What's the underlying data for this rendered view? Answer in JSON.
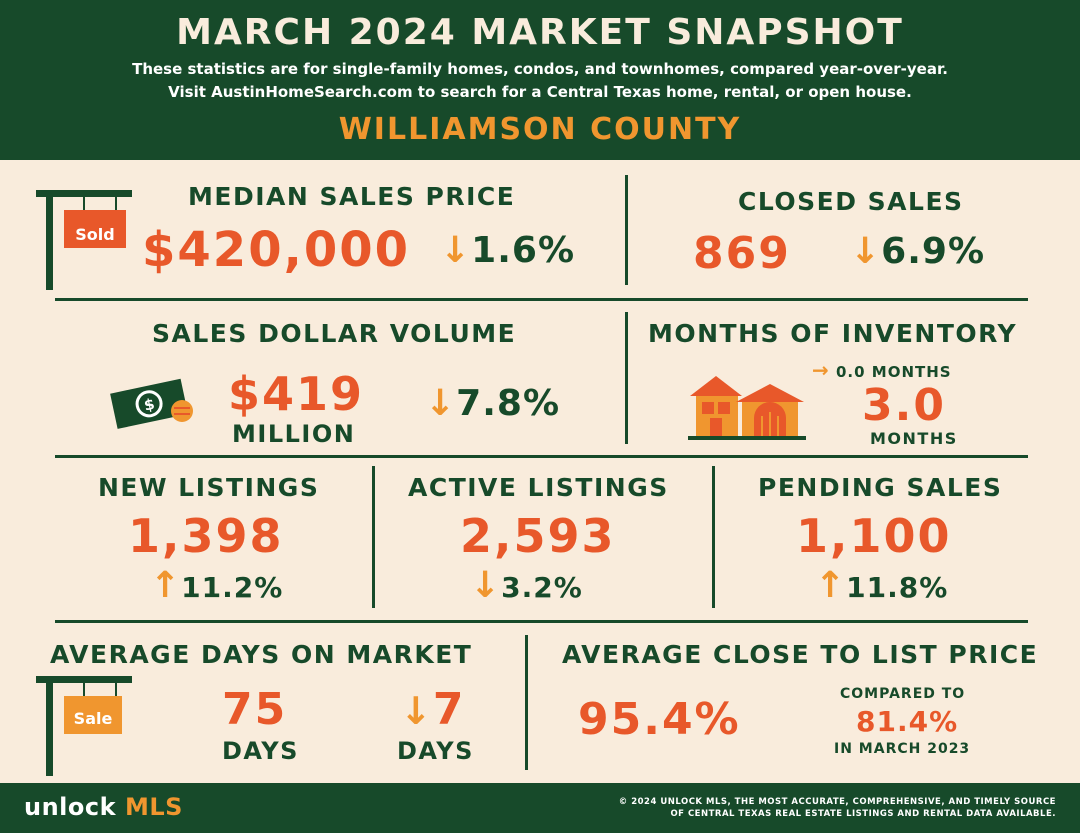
{
  "header": {
    "title": "MARCH 2024 MARKET SNAPSHOT",
    "subtitle_line1": "These statistics are for single-family homes, condos, and townhomes, compared year-over-year.",
    "subtitle_line2": "Visit AustinHomeSearch.com to search for a Central Texas home, rental, or open house.",
    "county": "WILLIAMSON COUNTY"
  },
  "median_sales_price": {
    "label": "MEDIAN SALES PRICE",
    "value": "$420,000",
    "direction": "down",
    "arrow": "↓",
    "change": "1.6%",
    "sign_text": "Sold",
    "icon": "sold-sign-icon"
  },
  "closed_sales": {
    "label": "CLOSED SALES",
    "value": "869",
    "direction": "down",
    "arrow": "↓",
    "change": "6.9%"
  },
  "sales_dollar_volume": {
    "label": "SALES DOLLAR VOLUME",
    "value": "$419",
    "unit": "MILLION",
    "direction": "down",
    "arrow": "↓",
    "change": "7.8%",
    "icon": "money-icon"
  },
  "months_of_inventory": {
    "label": "MONTHS OF INVENTORY",
    "arrow": "→",
    "change": "0.0 MONTHS",
    "value": "3.0",
    "unit": "MONTHS",
    "icon": "houses-icon"
  },
  "new_listings": {
    "label": "NEW LISTINGS",
    "value": "1,398",
    "direction": "up",
    "arrow": "↑",
    "change": "11.2%"
  },
  "active_listings": {
    "label": "ACTIVE LISTINGS",
    "value": "2,593",
    "direction": "down",
    "arrow": "↓",
    "change": "3.2%"
  },
  "pending_sales": {
    "label": "PENDING SALES",
    "value": "1,100",
    "direction": "up",
    "arrow": "↑",
    "change": "11.8%"
  },
  "average_days_on_market": {
    "label": "AVERAGE DAYS ON MARKET",
    "value": "75",
    "unit": "DAYS",
    "arrow": "↓",
    "change": "7",
    "change_unit": "DAYS",
    "sign_text": "Sale",
    "icon": "sale-sign-icon"
  },
  "average_close_to_list": {
    "label": "AVERAGE CLOSE TO LIST PRICE",
    "value": "95.4%",
    "compared_label": "COMPARED TO",
    "compared_value": "81.4%",
    "compared_period": "IN MARCH 2023"
  },
  "footer": {
    "logo_word": "unlock",
    "logo_accent": "MLS",
    "copyright_line1": "© 2024 UNLOCK MLS, THE MOST ACCURATE, COMPREHENSIVE, AND TIMELY SOURCE",
    "copyright_line2": "OF CENTRAL TEXAS REAL ESTATE LISTINGS AND RENTAL DATA AVAILABLE."
  },
  "colors": {
    "dark_green": "#174a2a",
    "cream": "#f9ecdc",
    "orange": "#e8582a",
    "amber": "#f0962f"
  }
}
